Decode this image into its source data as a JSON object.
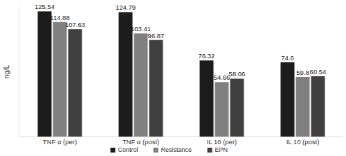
{
  "chart_data": {
    "type": "bar",
    "y_label": "ng/L",
    "categories": [
      "TNF α (per)",
      "TNF α (post)",
      "IL 10 (per)",
      "IL 10 (post)"
    ],
    "series": [
      {
        "name": "Control",
        "color": "#1c1c1c",
        "values": [
          125.54,
          124.79,
          76.32,
          74.6
        ]
      },
      {
        "name": "Resistance",
        "color": "#808080",
        "values": [
          114.88,
          103.41,
          54.66,
          59.8
        ]
      },
      {
        "name": "EPN",
        "color": "#404040",
        "values": [
          107.63,
          96.87,
          58.06,
          60.54
        ]
      }
    ],
    "ylim": [
      0,
      130
    ],
    "tick_labels": "x",
    "data_labels": true,
    "grid": false,
    "legend": "bottom"
  }
}
